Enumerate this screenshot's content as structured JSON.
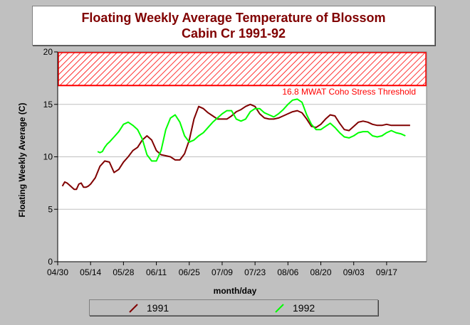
{
  "title": {
    "line1": "Floating Weekly Average Temperature of Blossom",
    "line2": "Cabin Cr 1991-92"
  },
  "chart_data": {
    "type": "line",
    "xlabel": "month/day",
    "ylabel": "Floating Weekly Average (C)",
    "ylim": [
      0,
      20
    ],
    "yticks": [
      0,
      5,
      10,
      15,
      20
    ],
    "xlim": [
      "04/30",
      "10/04"
    ],
    "xticks": [
      "04/30",
      "05/14",
      "05/28",
      "06/11",
      "06/25",
      "07/09",
      "07/23",
      "08/06",
      "08/20",
      "09/03",
      "09/17"
    ],
    "grid": "horizontal",
    "threshold": {
      "value": 16.8,
      "label": "16.8 MWAT Coho Stress Threshold",
      "color": "#ff0000"
    },
    "series": [
      {
        "name": "1991",
        "color": "#800000",
        "x": [
          "05/02",
          "05/03",
          "05/04",
          "05/05",
          "05/06",
          "05/07",
          "05/08",
          "05/09",
          "05/10",
          "05/11",
          "05/12",
          "05/13",
          "05/14",
          "05/16",
          "05/18",
          "05/20",
          "05/22",
          "05/24",
          "05/26",
          "05/28",
          "05/30",
          "06/01",
          "06/03",
          "06/05",
          "06/07",
          "06/09",
          "06/11",
          "06/13",
          "06/15",
          "06/17",
          "06/19",
          "06/21",
          "06/23",
          "06/25",
          "06/27",
          "06/29",
          "07/01",
          "07/03",
          "07/05",
          "07/07",
          "07/09",
          "07/11",
          "07/13",
          "07/15",
          "07/17",
          "07/19",
          "07/21",
          "07/23",
          "07/25",
          "07/27",
          "07/29",
          "07/31",
          "08/02",
          "08/04",
          "08/06",
          "08/08",
          "08/10",
          "08/12",
          "08/14",
          "08/16",
          "08/18",
          "08/20",
          "08/22",
          "08/24",
          "08/26",
          "08/28",
          "08/30",
          "09/01",
          "09/03",
          "09/05",
          "09/07",
          "09/09",
          "09/11",
          "09/13",
          "09/15",
          "09/17",
          "09/19",
          "09/21",
          "09/23",
          "09/25",
          "09/27"
        ],
        "values": [
          7.2,
          7.6,
          7.5,
          7.3,
          7.1,
          6.9,
          6.9,
          7.4,
          7.5,
          7.1,
          7.1,
          7.2,
          7.4,
          8.0,
          9.1,
          9.6,
          9.5,
          8.5,
          8.8,
          9.5,
          10.0,
          10.6,
          10.9,
          11.6,
          12.0,
          11.6,
          10.6,
          10.2,
          10.1,
          10.0,
          9.7,
          9.7,
          10.3,
          11.6,
          13.6,
          14.8,
          14.6,
          14.2,
          13.9,
          13.6,
          13.6,
          13.6,
          13.9,
          14.3,
          14.5,
          14.8,
          15.0,
          14.8,
          14.1,
          13.7,
          13.6,
          13.6,
          13.7,
          13.9,
          14.1,
          14.3,
          14.4,
          14.2,
          13.6,
          12.9,
          12.8,
          13.1,
          13.6,
          14.0,
          13.9,
          13.2,
          12.6,
          12.5,
          12.9,
          13.3,
          13.4,
          13.3,
          13.1,
          13.0,
          13.0,
          13.1,
          13.0,
          13.0,
          13.0,
          13.0,
          13.0
        ]
      },
      {
        "name": "1992",
        "color": "#00ff00",
        "x": [
          "05/17",
          "05/18",
          "05/19",
          "05/20",
          "05/21",
          "05/22",
          "05/24",
          "05/26",
          "05/28",
          "05/30",
          "06/01",
          "06/03",
          "06/05",
          "06/07",
          "06/09",
          "06/11",
          "06/13",
          "06/15",
          "06/17",
          "06/19",
          "06/21",
          "06/23",
          "06/25",
          "06/27",
          "06/29",
          "07/01",
          "07/03",
          "07/05",
          "07/07",
          "07/09",
          "07/11",
          "07/13",
          "07/15",
          "07/17",
          "07/19",
          "07/21",
          "07/23",
          "07/25",
          "07/27",
          "07/29",
          "07/31",
          "08/02",
          "08/04",
          "08/06",
          "08/08",
          "08/10",
          "08/12",
          "08/14",
          "08/16",
          "08/18",
          "08/20",
          "08/22",
          "08/24",
          "08/26",
          "08/28",
          "08/30",
          "09/01",
          "09/03",
          "09/05",
          "09/07",
          "09/09",
          "09/11",
          "09/13",
          "09/15",
          "09/17",
          "09/19",
          "09/21",
          "09/23",
          "09/25"
        ],
        "values": [
          10.5,
          10.4,
          10.5,
          10.9,
          11.2,
          11.4,
          11.9,
          12.4,
          13.1,
          13.3,
          13.0,
          12.6,
          11.7,
          10.2,
          9.6,
          9.6,
          10.6,
          12.6,
          13.7,
          14.0,
          13.3,
          12.0,
          11.4,
          11.6,
          12.0,
          12.3,
          12.8,
          13.3,
          13.7,
          14.1,
          14.4,
          14.4,
          13.6,
          13.4,
          13.6,
          14.3,
          14.6,
          14.6,
          14.2,
          14.0,
          13.8,
          14.1,
          14.5,
          15.0,
          15.4,
          15.5,
          15.2,
          14.0,
          13.1,
          12.6,
          12.6,
          12.9,
          13.2,
          12.8,
          12.3,
          11.9,
          11.8,
          12.0,
          12.3,
          12.4,
          12.4,
          12.0,
          11.9,
          12.0,
          12.3,
          12.5,
          12.3,
          12.2,
          12.0
        ]
      }
    ]
  },
  "legend": {
    "s1_label": "1991",
    "s2_label": "1992"
  }
}
